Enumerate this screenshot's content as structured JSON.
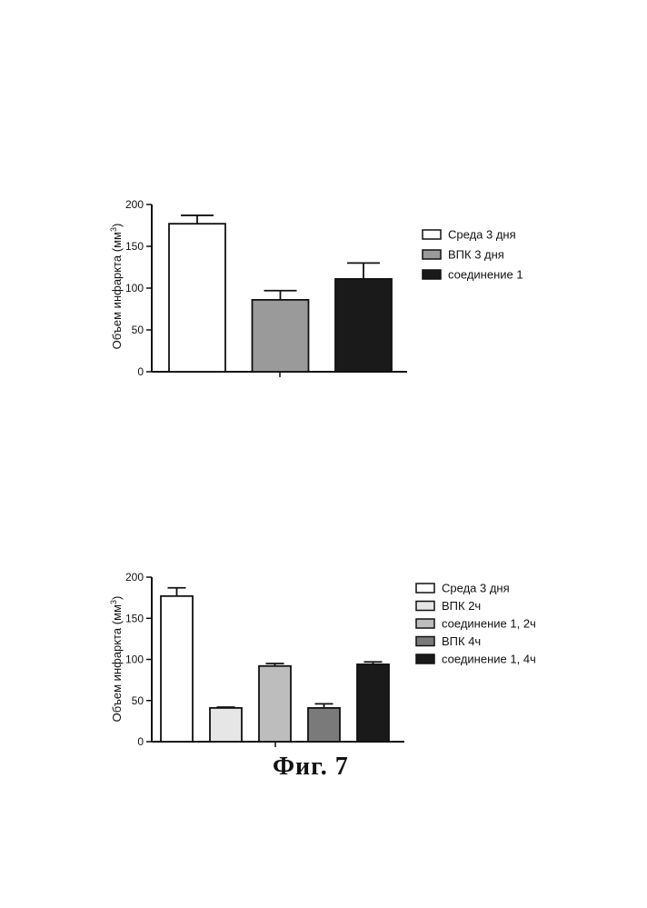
{
  "chart_data": [
    {
      "type": "bar",
      "ylabel_prefix": "Объем инфаркта (мм",
      "ylabel_superscript": "3",
      "ylabel_suffix": ")",
      "ylim": [
        0,
        200
      ],
      "yticks": [
        0,
        50,
        100,
        150,
        200
      ],
      "categories": [
        "Среда 3 дня",
        "ВПК 3 дня",
        "соединение 1"
      ],
      "values": [
        177,
        86,
        111
      ],
      "errors": [
        10,
        11,
        19
      ],
      "fills": [
        "#ffffff",
        "#9a9a9a",
        "#1a1a1a"
      ],
      "legend": [
        "Среда 3 дня",
        "ВПК 3 дня",
        "соединение 1"
      ]
    },
    {
      "type": "bar",
      "ylabel_prefix": "Объем инфаркта (мм",
      "ylabel_superscript": "3",
      "ylabel_suffix": ")",
      "ylim": [
        0,
        200
      ],
      "yticks": [
        0,
        50,
        100,
        150,
        200
      ],
      "categories": [
        "Среда 3 дня",
        "ВПК 2ч",
        "соединение 1, 2ч",
        "ВПК 4ч",
        "соединение 1, 4ч"
      ],
      "values": [
        177,
        41,
        92,
        41,
        94
      ],
      "errors": [
        10,
        1,
        3,
        5,
        3
      ],
      "fills": [
        "#ffffff",
        "#e6e6e6",
        "#bdbdbd",
        "#7a7a7a",
        "#1a1a1a"
      ],
      "legend": [
        "Среда 3 дня",
        "ВПК 2ч",
        "соединение 1, 2ч",
        "ВПК 4ч",
        "соединение 1, 4ч"
      ]
    }
  ],
  "caption": "Фиг.   7"
}
